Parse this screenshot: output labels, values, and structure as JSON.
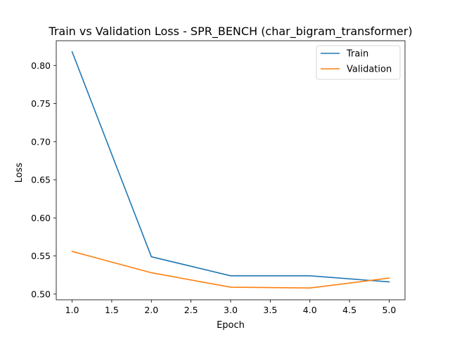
{
  "chart_data": {
    "type": "line",
    "title": "Train vs Validation Loss - SPR_BENCH (char_bigram_transformer)",
    "xlabel": "Epoch",
    "ylabel": "Loss",
    "x": [
      1,
      2,
      3,
      4,
      5
    ],
    "series": [
      {
        "name": "Train",
        "color": "#1f77b4",
        "values": [
          0.818,
          0.549,
          0.524,
          0.524,
          0.516
        ]
      },
      {
        "name": "Validation",
        "color": "#ff7f0e",
        "values": [
          0.556,
          0.528,
          0.509,
          0.508,
          0.521
        ]
      }
    ],
    "xlim": [
      0.8,
      5.2
    ],
    "ylim": [
      0.4925,
      0.8325
    ],
    "xticks": [
      1.0,
      1.5,
      2.0,
      2.5,
      3.0,
      3.5,
      4.0,
      4.5,
      5.0
    ],
    "xtick_labels": [
      "1.0",
      "1.5",
      "2.0",
      "2.5",
      "3.0",
      "3.5",
      "4.0",
      "4.5",
      "5.0"
    ],
    "yticks": [
      0.5,
      0.55,
      0.6,
      0.65,
      0.7,
      0.75,
      0.8
    ],
    "ytick_labels": [
      "0.50",
      "0.55",
      "0.60",
      "0.65",
      "0.70",
      "0.75",
      "0.80"
    ],
    "grid": false,
    "legend_position": "top-right"
  }
}
